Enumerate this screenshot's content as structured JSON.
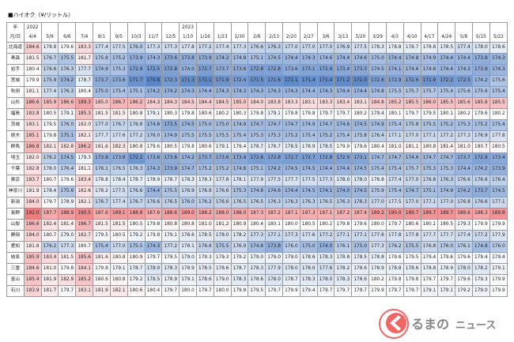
{
  "title": "■ハイオク（¥/リットル）",
  "header": {
    "year_label": "年",
    "date_label": "月/日"
  },
  "columns": [
    {
      "year": "2022",
      "date": "4/4"
    },
    {
      "year": "",
      "date": "5/9"
    },
    {
      "year": "",
      "date": "6/6"
    },
    {
      "year": "",
      "date": "7/4"
    },
    {
      "year": "",
      "date": "8/1"
    },
    {
      "year": "",
      "date": "9/5"
    },
    {
      "year": "",
      "date": "10/3"
    },
    {
      "year": "",
      "date": "11/7"
    },
    {
      "year": "",
      "date": "12/5"
    },
    {
      "year": "2023",
      "date": "1/10"
    },
    {
      "year": "",
      "date": "1/16"
    },
    {
      "year": "",
      "date": "1/23"
    },
    {
      "year": "",
      "date": "1/30"
    },
    {
      "year": "",
      "date": "2/6"
    },
    {
      "year": "",
      "date": "2/13"
    },
    {
      "year": "",
      "date": "2/20"
    },
    {
      "year": "",
      "date": "2/27"
    },
    {
      "year": "",
      "date": "3/6"
    },
    {
      "year": "",
      "date": "3/13"
    },
    {
      "year": "",
      "date": "3/20"
    },
    {
      "year": "",
      "date": "3/29"
    },
    {
      "year": "",
      "date": "4/3"
    },
    {
      "year": "",
      "date": "4/10"
    },
    {
      "year": "",
      "date": "4/17"
    },
    {
      "year": "",
      "date": "4/24"
    },
    {
      "year": "",
      "date": "5/8"
    },
    {
      "year": "",
      "date": "5/15"
    },
    {
      "year": "",
      "date": "5/22"
    }
  ],
  "rows": [
    {
      "pref": "北海道",
      "values": [
        184.6,
        178.8,
        179.6,
        183.3,
        177.4,
        177.5,
        176.0,
        177.3,
        177.3,
        177.8,
        177.2,
        177.4,
        177.3,
        176.6,
        176.3,
        177.0,
        177.0,
        177.0,
        176.9,
        177.5,
        178.3,
        178.8,
        178.7,
        178.8,
        178.5,
        177.4,
        178.0,
        178.6
      ]
    },
    {
      "pref": "青森",
      "values": [
        181.5,
        176.7,
        175.5,
        181.7,
        175.8,
        175.2,
        173.9,
        174.3,
        173.6,
        173.8,
        173.9,
        174.2,
        174.8,
        175.1,
        174.5,
        174.4,
        174.3,
        174.6,
        174.4,
        174.6,
        175.0,
        174.4,
        174.8,
        174.9,
        174.4,
        174.4,
        173.8,
        174.3
      ]
    },
    {
      "pref": "岩手",
      "values": [
        180.4,
        176.6,
        176.3,
        177.7,
        174.9,
        175.3,
        172.9,
        172.5,
        172.8,
        174.0,
        172.7,
        173.7,
        173.6,
        172.8,
        172.8,
        173.6,
        173.1,
        172.9,
        173.4,
        173.3,
        174.5,
        174.1,
        174.6,
        174.8,
        174.4,
        174.3,
        173.8,
        174.3
      ]
    },
    {
      "pref": "宮城",
      "values": [
        179.9,
        175.9,
        174.2,
        178.7,
        173.7,
        173.6,
        171.7,
        170.8,
        172.3,
        171.3,
        171.1,
        171.8,
        172.4,
        171.5,
        171.6,
        171.1,
        171.4,
        171.4,
        171.2,
        171.0,
        172.6,
        172.9,
        172.6,
        171.9,
        172.2,
        172.5,
        174.2,
        175.6
      ]
    },
    {
      "pref": "秋田",
      "values": [
        181.1,
        177.4,
        176.3,
        180.4,
        175.0,
        175.4,
        175.1,
        174.2,
        174.2,
        174.3,
        174.4,
        174.3,
        174.3,
        174.3,
        174.3,
        174.3,
        174.4,
        174.3,
        174.4,
        174.4,
        174.8,
        175.5,
        175.7,
        175.7,
        175.4,
        175.6,
        175.6,
        175.4
      ]
    },
    {
      "pref": "山形",
      "values": [
        186.6,
        185.9,
        186.6,
        188.3,
        185.0,
        186.7,
        186.2,
        184.3,
        184.3,
        184.5,
        184.4,
        184.5,
        185.0,
        184.0,
        183.8,
        183.3,
        183.1,
        183.3,
        183.4,
        183.1,
        184.8,
        185.2,
        185.5,
        186.0,
        185.5,
        185.6,
        185.8,
        185.5
      ]
    },
    {
      "pref": "福島",
      "values": [
        183.8,
        180.5,
        179.1,
        185.3,
        181.5,
        181.5,
        180.8,
        179.1,
        180.3,
        179.8,
        180.6,
        180.2,
        180.3,
        179.8,
        179.1,
        179.8,
        179.8,
        179.7,
        179.7,
        180.2,
        179.4,
        180.1,
        179.7,
        179.5,
        180.1,
        180.2,
        179.6,
        180.2
      ]
    },
    {
      "pref": "茨城",
      "values": [
        183.1,
        179.5,
        176.0,
        182.0,
        177.0,
        176.7,
        176.8,
        174.8,
        173.5,
        174.5,
        175.0,
        175.0,
        174.9,
        174.7,
        174.7,
        174.7,
        174.9,
        174.7,
        174.6,
        174.5,
        174.9,
        175.4,
        175.8,
        175.5,
        175.2,
        175.3,
        175.2,
        175.4
      ]
    },
    {
      "pref": "栃木",
      "values": [
        185.1,
        179.8,
        175.1,
        182.1,
        177.7,
        177.6,
        177.2,
        176.0,
        174.9,
        175.5,
        175.5,
        175.5,
        175.4,
        175.3,
        175.3,
        175.2,
        175.4,
        175.2,
        175.4,
        175.8,
        176.4,
        177.1,
        177.0,
        177.1,
        177.2,
        177.3,
        176.9,
        177.8
      ]
    },
    {
      "pref": "群馬",
      "values": [
        186.8,
        182.1,
        182.8,
        186.2,
        181.6,
        182.3,
        180.8,
        179.6,
        180.5,
        179.8,
        180.6,
        179.1,
        179.4,
        178.7,
        178.7,
        178.5,
        178.9,
        178.5,
        179.9,
        179.6,
        180.4,
        181.0,
        181.1,
        180.8,
        181.4,
        181.0,
        180.7,
        180.5
      ]
    },
    {
      "pref": "埼玉",
      "values": [
        182.0,
        176.2,
        174.5,
        179.3,
        173.8,
        173.8,
        172.1,
        173.6,
        173.6,
        174.2,
        173.7,
        173.6,
        173.4,
        172.6,
        172.8,
        172.7,
        172.7,
        172.8,
        172.9,
        173.1,
        174.7,
        174.7,
        174.6,
        174.7,
        174.7,
        173.7,
        172.9,
        173.4
      ]
    },
    {
      "pref": "千葉",
      "values": [
        182.8,
        178.0,
        176.4,
        181.1,
        176.1,
        176.5,
        176.3,
        174.3,
        173.9,
        174.7,
        175.2,
        175.2,
        174.8,
        175.1,
        174.2,
        174.5,
        174.5,
        174.4,
        174.4,
        174.5,
        175.4,
        175.4,
        175.7,
        175.3,
        175.3,
        174.4,
        174.2,
        173.9
      ]
    },
    {
      "pref": "東京",
      "values": [
        183.7,
        180.7,
        179.6,
        183.4,
        178.8,
        178.4,
        178.7,
        178.9,
        178.7,
        178.3,
        178.3,
        177.8,
        178.1,
        177.9,
        177.5,
        177.7,
        177.5,
        177.3,
        178.0,
        178.0,
        178.8,
        177.4,
        177.0,
        176.8,
        176.3,
        176.6,
        176.6,
        176.4
      ]
    },
    {
      "pref": "神奈川",
      "values": [
        181.9,
        178.4,
        175.6,
        182.6,
        178.2,
        177.5,
        176.6,
        174.4,
        175.5,
        176.9,
        176.9,
        176.6,
        175.3,
        174.8,
        174.6,
        174.4,
        174.5,
        174.1,
        174.0,
        174.5,
        175.9,
        175.4,
        174.7,
        175.1,
        174.9,
        174.2,
        173.7,
        174.5
      ]
    },
    {
      "pref": "新潟",
      "values": [
        184.0,
        179.7,
        178.9,
        182.1,
        176.7,
        177.4,
        176.7,
        176.6,
        176.5,
        176.0,
        176.2,
        176.6,
        176.5,
        176.5,
        176.3,
        176.3,
        176.3,
        176.5,
        176.3,
        176.3,
        177.0,
        177.5,
        177.0,
        177.1,
        177.0,
        176.8,
        176.6,
        177.1
      ]
    },
    {
      "pref": "長野",
      "values": [
        192.0,
        187.7,
        188.9,
        190.5,
        187.6,
        189.1,
        188.8,
        187.6,
        188.6,
        189.0,
        188.2,
        188.0,
        188.0,
        187.3,
        187.2,
        187.1,
        187.3,
        187.1,
        187.2,
        187.4,
        189.2,
        190.0,
        189.7,
        189.7,
        189.7,
        188.6,
        188.3,
        189.8
      ]
    },
    {
      "pref": "山梨",
      "values": [
        186.6,
        182.4,
        181.4,
        186.7,
        181.5,
        181.5,
        180.5,
        179.8,
        180.8,
        180.8,
        181.0,
        181.2,
        180.9,
        180.4,
        180.1,
        180.0,
        180.5,
        180.2,
        179.8,
        179.6,
        180.0,
        179.7,
        180.6,
        180.1,
        180.5,
        179.3,
        179.9,
        179.9
      ]
    },
    {
      "pref": "静岡",
      "values": [
        184.0,
        180.7,
        179.0,
        182.7,
        179.5,
        180.5,
        179.2,
        179.8,
        179.1,
        178.6,
        178.5,
        178.0,
        178.2,
        177.3,
        177.1,
        177.3,
        177.6,
        177.2,
        177.1,
        177.1,
        177.6,
        177.8,
        177.8,
        177.7,
        177.7,
        177.4,
        177.2,
        177.9
      ]
    },
    {
      "pref": "愛知",
      "values": [
        181.8,
        176.2,
        177.3,
        180.7,
        175.4,
        177.0,
        175.5,
        174.3,
        177.2,
        178.1,
        176.6,
        175.5,
        176.9,
        174.8,
        173.8,
        176.0,
        175.0,
        174.0,
        176.1,
        175.0,
        177.3,
        176.2,
        175.5,
        176.8,
        176.0,
        176.1,
        174.8,
        176.0
      ]
    },
    {
      "pref": "岐阜",
      "values": [
        185.9,
        183.4,
        181.5,
        185.6,
        181.6,
        180.8,
        180.9,
        179.7,
        179.5,
        179.0,
        179.3,
        179.3,
        179.2,
        179.0,
        179.0,
        179.0,
        178.6,
        178.3,
        178.8,
        178.5,
        178.8,
        179.6,
        179.5,
        179.4,
        179.6,
        179.6,
        179.4,
        179.4
      ]
    },
    {
      "pref": "三重",
      "values": [
        184.6,
        181.0,
        179.8,
        184.1,
        179.8,
        179.1,
        178.7,
        178.0,
        178.3,
        178.9,
        178.5,
        178.6,
        178.7,
        178.3,
        177.9,
        178.0,
        178.0,
        177.6,
        178.2,
        178.6,
        178.9,
        178.8,
        178.6,
        178.8,
        178.9,
        178.0,
        178.2,
        179.1
      ]
    },
    {
      "pref": "富山",
      "values": [
        185.4,
        181.9,
        182.9,
        185.2,
        180.6,
        180.8,
        179.2,
        178.5,
        178.9,
        179.1,
        178.6,
        179.0,
        178.3,
        178.6,
        178.0,
        178.7,
        178.3,
        178.0,
        178.3,
        178.6,
        180.2,
        179.8,
        179.8,
        179.7,
        179.7,
        179.6,
        179.3,
        179.9
      ]
    },
    {
      "pref": "石川",
      "values": [
        183.9,
        181.7,
        179.7,
        183.1,
        181.9,
        182.1,
        180.6,
        180.4,
        179.7,
        180.0,
        179.7,
        180.0,
        179.8,
        179.5,
        179.7,
        179.9,
        179.4,
        179.7,
        179.7,
        179.7,
        179.9,
        179.7,
        179.7,
        179.1,
        179.1,
        179.2,
        179.0,
        179.9
      ]
    }
  ],
  "color_scale": {
    "low": "#5a86c8",
    "mid": "#ffffff",
    "high": "#f07a7e",
    "low_value": 170.8,
    "mid_value": 180.0,
    "high_value": 192.0
  },
  "logo": {
    "text_top": "るまの",
    "text_bottom": "ニュース",
    "mark_color": "#f04b4b",
    "text_color": "#6e6e6e"
  }
}
